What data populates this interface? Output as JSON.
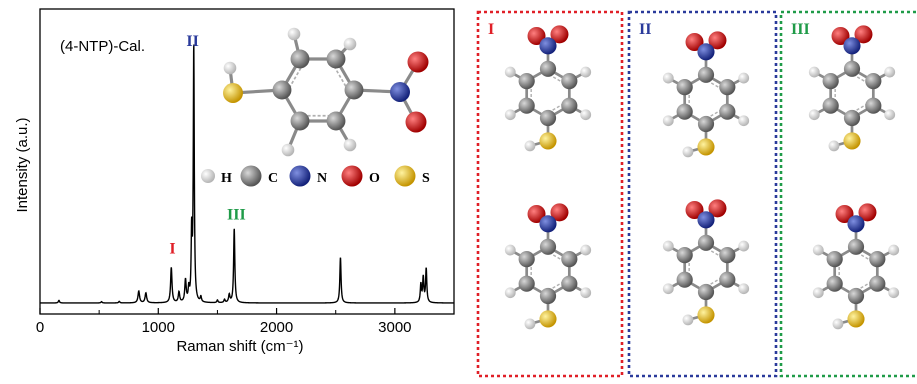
{
  "chart_data": {
    "type": "line",
    "title": "(4-NTP)-Cal.",
    "xlabel": "Raman shift (cm⁻¹)",
    "ylabel": "Intensity (a.u.)",
    "xlim": [
      0,
      3500
    ],
    "ylim": [
      0,
      1.0
    ],
    "xticks": [
      "0",
      "1000",
      "2000",
      "3000"
    ],
    "grid": false,
    "series": [
      {
        "color": "#000000",
        "peaks": [
          {
            "x": 160,
            "h": 0.01,
            "w": 6
          },
          {
            "x": 520,
            "h": 0.005,
            "w": 6
          },
          {
            "x": 670,
            "h": 0.006,
            "w": 6
          },
          {
            "x": 835,
            "h": 0.045,
            "w": 8
          },
          {
            "x": 895,
            "h": 0.038,
            "w": 8
          },
          {
            "x": 1110,
            "h": 0.135,
            "w": 7
          },
          {
            "x": 1175,
            "h": 0.04,
            "w": 7
          },
          {
            "x": 1230,
            "h": 0.085,
            "w": 7
          },
          {
            "x": 1258,
            "h": 0.05,
            "w": 6
          },
          {
            "x": 1282,
            "h": 0.255,
            "w": 5
          },
          {
            "x": 1300,
            "h": 0.98,
            "w": 5
          },
          {
            "x": 1360,
            "h": 0.02,
            "w": 6
          },
          {
            "x": 1500,
            "h": 0.01,
            "w": 6
          },
          {
            "x": 1560,
            "h": 0.012,
            "w": 6
          },
          {
            "x": 1600,
            "h": 0.03,
            "w": 7
          },
          {
            "x": 1642,
            "h": 0.285,
            "w": 6
          },
          {
            "x": 2540,
            "h": 0.175,
            "w": 6
          },
          {
            "x": 3220,
            "h": 0.07,
            "w": 6
          },
          {
            "x": 3240,
            "h": 0.095,
            "w": 6
          },
          {
            "x": 3265,
            "h": 0.13,
            "w": 6
          }
        ]
      }
    ],
    "annotations": [
      {
        "text": "I",
        "x": 1120,
        "y": 0.19,
        "color": "#e01f27"
      },
      {
        "text": "II",
        "x": 1290,
        "y": 0.985,
        "color": "#2a3a9b"
      },
      {
        "text": "III",
        "x": 1660,
        "y": 0.32,
        "color": "#1f9b48"
      }
    ]
  },
  "legend": {
    "atoms": [
      {
        "symbol": "H",
        "color": "#e8e8e8"
      },
      {
        "symbol": "C",
        "color": "#7f7f7f"
      },
      {
        "symbol": "N",
        "color": "#2233aa"
      },
      {
        "symbol": "O",
        "color": "#e01010"
      },
      {
        "symbol": "S",
        "color": "#e8c020"
      }
    ]
  },
  "panels": [
    {
      "label": "I",
      "color": "#e01f27"
    },
    {
      "label": "II",
      "color": "#2a3a9b"
    },
    {
      "label": "III",
      "color": "#1f9b48"
    }
  ]
}
